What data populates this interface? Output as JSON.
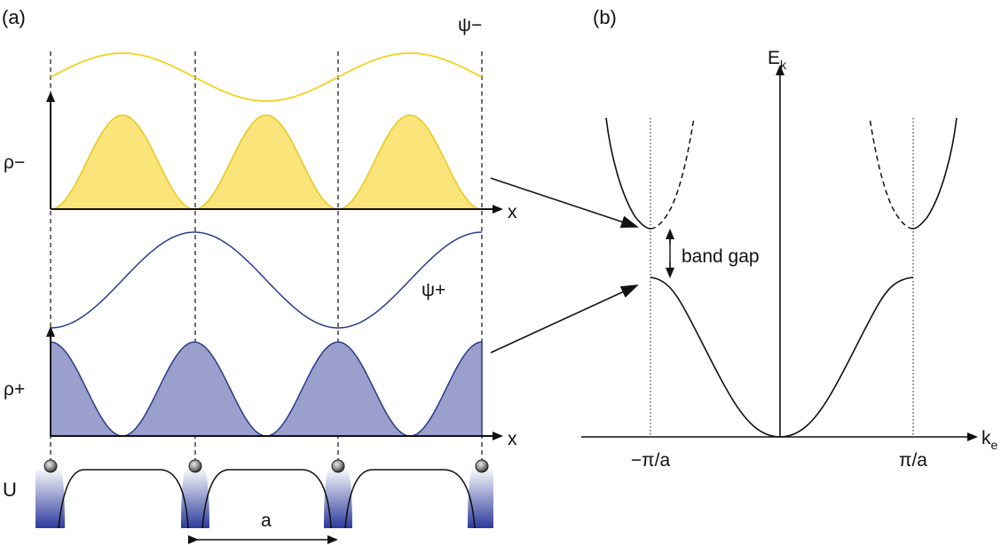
{
  "panel_a": {
    "label": "(a)",
    "psi_minus": "ψ−",
    "rho_minus": "ρ−",
    "psi_plus": "ψ+",
    "rho_plus": "ρ+",
    "x_axis_top": "x",
    "x_axis_bottom": "x",
    "potential": "U",
    "lattice_constant": "a"
  },
  "panel_b": {
    "label": "(b)",
    "y_axis": "E",
    "y_axis_sub": "k",
    "x_axis": "k",
    "x_axis_sub": "e",
    "tick_left": "−π/a",
    "tick_right": "π/a",
    "gap_label": "band gap"
  },
  "colors": {
    "psi_minus": "#f2d21f",
    "rho_minus_fill": "#fbe47a",
    "psi_plus": "#2b3a8c",
    "rho_plus_fill": "#9a9fcc",
    "potential_well": "#2b3a9c",
    "line": "#111111"
  }
}
